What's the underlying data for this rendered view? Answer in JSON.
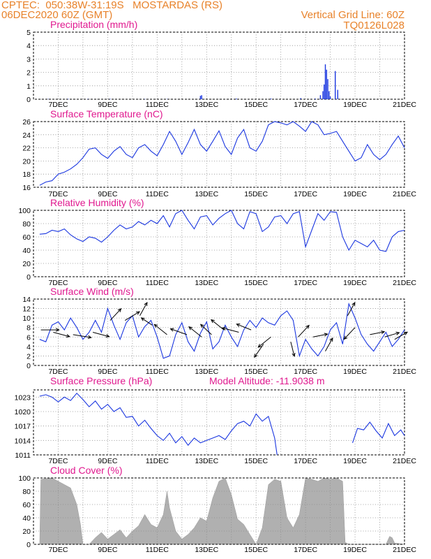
{
  "header": {
    "left_line1": "CPTEC:  050:38W-31:19S   MOSTARDAS (RS)",
    "left_line2": "06DEC2020 60Z (GMT)",
    "right_line1": "Vertical Grid Line: 60Z",
    "right_line2": "TQ0126L028"
  },
  "colors": {
    "title": "#e0198f",
    "header": "#e8822a",
    "series": "#1a36e0",
    "cloud": "#b0b0b0"
  },
  "chart_data": [
    {
      "id": "precip",
      "type": "bar",
      "title": "Precipitation (mm/h)",
      "ylim": [
        0,
        5
      ],
      "yticks": [
        0,
        1,
        2,
        3,
        4,
        5
      ],
      "xticks": [
        "7DEC",
        "9DEC",
        "11DEC",
        "13DEC",
        "15DEC",
        "17DEC",
        "19DEC",
        "21DEC"
      ],
      "x": [
        6.6,
        7.4,
        8.2,
        9.1,
        10.5,
        11.4,
        12.75,
        12.8,
        14.2,
        15.6,
        16.8,
        17.4,
        17.6,
        17.7,
        17.75,
        17.8,
        17.85,
        17.9,
        17.95,
        18.0,
        18.2,
        18.3
      ],
      "values": [
        0.02,
        0.03,
        0.02,
        0.03,
        0.02,
        0.02,
        0.25,
        0.3,
        0.05,
        0.05,
        0.08,
        0.05,
        0.3,
        0.6,
        1.1,
        2.6,
        2.2,
        1.5,
        0.6,
        0.2,
        2.1,
        0.7
      ]
    },
    {
      "id": "temp",
      "type": "line",
      "title": "Surface Temperature (nC)",
      "ylim": [
        16,
        26
      ],
      "yticks": [
        16,
        18,
        20,
        22,
        24,
        26
      ],
      "xticks": [
        "7DEC",
        "9DEC",
        "11DEC",
        "13DEC",
        "15DEC",
        "17DEC",
        "19DEC",
        "21DEC"
      ],
      "x": [
        6.25,
        6.5,
        6.75,
        7.0,
        7.25,
        7.5,
        7.75,
        8.0,
        8.25,
        8.5,
        8.75,
        9.0,
        9.25,
        9.5,
        9.75,
        10.0,
        10.25,
        10.5,
        10.75,
        11.0,
        11.25,
        11.5,
        11.75,
        12.0,
        12.25,
        12.5,
        12.75,
        13.0,
        13.25,
        13.5,
        13.75,
        14.0,
        14.25,
        14.5,
        14.75,
        15.0,
        15.25,
        15.5,
        15.75,
        16.0,
        16.25,
        16.5,
        16.75,
        17.0,
        17.25,
        17.5,
        17.75,
        18.0,
        18.25,
        18.5,
        18.75,
        19.0,
        19.25,
        19.5,
        19.75,
        20.0,
        20.25,
        20.5,
        20.75,
        21.0
      ],
      "values": [
        16.3,
        16.8,
        17.0,
        18.0,
        18.3,
        18.8,
        19.5,
        20.5,
        21.8,
        22.0,
        21.0,
        20.4,
        21.5,
        22.2,
        21.0,
        20.5,
        22.0,
        22.5,
        21.5,
        20.8,
        22.5,
        24.5,
        23.0,
        21.0,
        22.8,
        24.8,
        22.5,
        21.5,
        23.0,
        24.6,
        22.2,
        21.0,
        23.5,
        24.8,
        22.0,
        21.5,
        23.0,
        25.5,
        26.0,
        25.8,
        25.5,
        26.0,
        25.3,
        24.5,
        26.0,
        25.5,
        24.0,
        24.2,
        24.5,
        23.0,
        21.5,
        20.0,
        20.5,
        22.5,
        21.0,
        20.2,
        21.0,
        22.5,
        23.8,
        22.0
      ]
    },
    {
      "id": "rh",
      "type": "line",
      "title": "Relative Humidity (%)",
      "ylim": [
        0,
        100
      ],
      "yticks": [
        0,
        20,
        40,
        60,
        80,
        100
      ],
      "xticks": [
        "7DEC",
        "9DEC",
        "11DEC",
        "13DEC",
        "15DEC",
        "17DEC",
        "19DEC",
        "21DEC"
      ],
      "x": [
        6.25,
        6.5,
        6.75,
        7.0,
        7.25,
        7.5,
        7.75,
        8.0,
        8.25,
        8.5,
        8.75,
        9.0,
        9.25,
        9.5,
        9.75,
        10.0,
        10.25,
        10.5,
        10.75,
        11.0,
        11.25,
        11.5,
        11.75,
        12.0,
        12.25,
        12.5,
        12.75,
        13.0,
        13.25,
        13.5,
        13.75,
        14.0,
        14.25,
        14.5,
        14.75,
        15.0,
        15.25,
        15.5,
        15.75,
        16.0,
        16.25,
        16.5,
        16.75,
        17.0,
        17.25,
        17.5,
        17.75,
        18.0,
        18.25,
        18.5,
        18.75,
        19.0,
        19.25,
        19.5,
        19.75,
        20.0,
        20.25,
        20.5,
        20.75,
        21.0
      ],
      "values": [
        64,
        65,
        70,
        68,
        72,
        63,
        57,
        53,
        60,
        58,
        52,
        60,
        70,
        78,
        72,
        75,
        83,
        78,
        85,
        80,
        92,
        75,
        95,
        100,
        85,
        72,
        90,
        92,
        78,
        88,
        95,
        100,
        80,
        72,
        98,
        95,
        68,
        75,
        90,
        92,
        80,
        95,
        98,
        45,
        70,
        95,
        85,
        98,
        97,
        60,
        40,
        55,
        50,
        45,
        55,
        40,
        38,
        60,
        68,
        70
      ]
    },
    {
      "id": "wind",
      "type": "line",
      "title": "Surface Wind (m/s)",
      "ylim": [
        0,
        14
      ],
      "yticks": [
        0,
        2,
        4,
        6,
        8,
        10,
        12,
        14
      ],
      "xticks": [
        "7DEC",
        "9DEC",
        "11DEC",
        "13DEC",
        "15DEC",
        "17DEC",
        "19DEC",
        "21DEC"
      ],
      "x": [
        6.25,
        6.5,
        6.75,
        7.0,
        7.25,
        7.5,
        7.75,
        8.0,
        8.25,
        8.5,
        8.75,
        9.0,
        9.25,
        9.5,
        9.75,
        10.0,
        10.25,
        10.5,
        10.75,
        11.0,
        11.25,
        11.5,
        11.75,
        12.0,
        12.25,
        12.5,
        12.75,
        13.0,
        13.25,
        13.5,
        13.75,
        14.0,
        14.25,
        14.5,
        14.75,
        15.0,
        15.25,
        15.5,
        15.75,
        16.0,
        16.25,
        16.5,
        16.75,
        17.0,
        17.25,
        17.5,
        17.75,
        18.0,
        18.25,
        18.5,
        18.75,
        19.0,
        19.25,
        19.5,
        19.75,
        20.0,
        20.25,
        20.5,
        20.75,
        21.0
      ],
      "values": [
        5.5,
        5.0,
        8.5,
        9.2,
        7.5,
        10.0,
        8.0,
        5.5,
        7.0,
        9.5,
        7.0,
        12.0,
        8.5,
        5.5,
        9.0,
        10.5,
        6.0,
        8.2,
        9.5,
        6.0,
        1.5,
        2.0,
        6.5,
        9.0,
        5.0,
        3.0,
        6.8,
        9.2,
        3.5,
        5.0,
        8.5,
        6.0,
        4.0,
        7.5,
        9.5,
        8.0,
        10.0,
        9.0,
        8.5,
        10.5,
        11.5,
        9.5,
        2.0,
        5.5,
        3.5,
        2.0,
        4.0,
        7.5,
        9.0,
        4.5,
        13.0,
        10.0,
        6.5,
        4.5,
        3.0,
        5.0,
        7.0,
        4.0,
        5.5,
        7.5
      ],
      "arrows": [
        {
          "x": 6.3,
          "y": 7.5,
          "u": 1.0,
          "v": 0.0
        },
        {
          "x": 6.8,
          "y": 7.0,
          "u": 0.9,
          "v": -0.3
        },
        {
          "x": 7.6,
          "y": 6.5,
          "u": 1.0,
          "v": -0.2
        },
        {
          "x": 8.4,
          "y": 7.0,
          "u": 0.9,
          "v": -0.3
        },
        {
          "x": 9.1,
          "y": 9.5,
          "u": 0.6,
          "v": 0.8
        },
        {
          "x": 9.7,
          "y": 9.5,
          "u": 0.8,
          "v": 0.6
        },
        {
          "x": 10.3,
          "y": 10.5,
          "u": 0.4,
          "v": 0.9
        },
        {
          "x": 10.8,
          "y": 8.5,
          "u": -0.6,
          "v": 0.5
        },
        {
          "x": 11.4,
          "y": 6.5,
          "u": -0.7,
          "v": 0.7
        },
        {
          "x": 12.2,
          "y": 6.5,
          "u": -0.9,
          "v": 0.4
        },
        {
          "x": 12.8,
          "y": 6.0,
          "u": -0.7,
          "v": 0.7
        },
        {
          "x": 13.2,
          "y": 6.5,
          "u": -0.6,
          "v": 0.7
        },
        {
          "x": 13.7,
          "y": 7.5,
          "u": -0.7,
          "v": 0.7
        },
        {
          "x": 14.3,
          "y": 7.0,
          "u": -0.9,
          "v": 0.3
        },
        {
          "x": 14.8,
          "y": 7.5,
          "u": -0.8,
          "v": 0.4
        },
        {
          "x": 15.3,
          "y": 4.5,
          "u": -0.5,
          "v": -0.9
        },
        {
          "x": 15.6,
          "y": 6.0,
          "u": -0.7,
          "v": -0.7
        },
        {
          "x": 16.4,
          "y": 5.0,
          "u": 0.2,
          "v": -1.0
        },
        {
          "x": 16.7,
          "y": 6.0,
          "u": 0.6,
          "v": 0.8
        },
        {
          "x": 17.3,
          "y": 6.0,
          "u": 0.8,
          "v": 0.2
        },
        {
          "x": 17.8,
          "y": 3.0,
          "u": 0.4,
          "v": 0.9
        },
        {
          "x": 18.7,
          "y": 10.5,
          "u": 0.4,
          "v": 0.9
        },
        {
          "x": 19.0,
          "y": 8.0,
          "u": -0.6,
          "v": -0.8
        },
        {
          "x": 19.6,
          "y": 6.5,
          "u": 0.8,
          "v": 0.2
        },
        {
          "x": 20.2,
          "y": 6.0,
          "u": 0.8,
          "v": 0.3
        },
        {
          "x": 20.6,
          "y": 5.5,
          "u": 0.7,
          "v": 0.5
        }
      ]
    },
    {
      "id": "pressure",
      "type": "line",
      "title": "Surface Pressure (hPa)",
      "annotation": "Model Altitude: -11.9038 m",
      "ylim": [
        1011,
        1024.5
      ],
      "yticks": [
        1011,
        1014,
        1017,
        1020,
        1023
      ],
      "xticks": [
        "7DEC",
        "9DEC",
        "11DEC",
        "13DEC",
        "15DEC",
        "17DEC",
        "19DEC",
        "21DEC"
      ],
      "x": [
        6.25,
        6.5,
        6.75,
        7.0,
        7.25,
        7.5,
        7.75,
        8.0,
        8.25,
        8.5,
        8.75,
        9.0,
        9.25,
        9.5,
        9.75,
        10.0,
        10.25,
        10.5,
        10.75,
        11.0,
        11.25,
        11.5,
        11.75,
        12.0,
        12.25,
        12.5,
        12.75,
        13.0,
        13.25,
        13.5,
        13.75,
        14.0,
        14.25,
        14.5,
        14.75,
        15.0,
        15.25,
        15.5,
        15.75,
        15.85
      ],
      "values": [
        1023.2,
        1023.5,
        1023.0,
        1022.0,
        1023.0,
        1022.3,
        1023.8,
        1022.5,
        1021.0,
        1022.2,
        1020.5,
        1021.5,
        1020.0,
        1020.8,
        1018.8,
        1019.0,
        1017.0,
        1018.2,
        1016.5,
        1015.0,
        1014.0,
        1015.5,
        1013.5,
        1014.8,
        1013.0,
        1014.5,
        1013.5,
        1014.0,
        1014.5,
        1015.0,
        1014.2,
        1016.0,
        1017.5,
        1018.0,
        1017.0,
        1019.5,
        1018.0,
        1019.0,
        1014.5,
        1011.0
      ],
      "x2": [
        18.9,
        19.1,
        19.35,
        19.6,
        19.85,
        20.1,
        20.35,
        20.6,
        20.85,
        21.0
      ],
      "values2": [
        1013.5,
        1016.5,
        1016.2,
        1017.8,
        1016.0,
        1014.5,
        1017.5,
        1015.0,
        1016.2,
        1015.0
      ]
    },
    {
      "id": "cloud",
      "type": "area",
      "title": "Cloud Cover (%)",
      "ylim": [
        0,
        100
      ],
      "yticks": [
        0,
        20,
        40,
        60,
        80,
        100
      ],
      "xticks": [
        "7DEC",
        "9DEC",
        "11DEC",
        "13DEC",
        "15DEC",
        "17DEC",
        "19DEC",
        "21DEC"
      ],
      "x": [
        6.25,
        6.3,
        6.5,
        6.75,
        7.0,
        7.25,
        7.5,
        7.75,
        7.9,
        8.0,
        8.25,
        8.5,
        8.75,
        9.0,
        9.25,
        9.5,
        9.75,
        10.0,
        10.25,
        10.5,
        10.75,
        11.0,
        11.25,
        11.4,
        11.5,
        11.75,
        12.0,
        12.25,
        12.5,
        12.75,
        13.0,
        13.25,
        13.5,
        13.75,
        14.0,
        14.25,
        14.5,
        14.75,
        15.0,
        15.25,
        15.5,
        15.75,
        16.0,
        16.25,
        16.5,
        16.75,
        17.0,
        17.25,
        17.5,
        17.75,
        18.0,
        18.25,
        18.5,
        18.6,
        18.75,
        19.0,
        19.25,
        19.5,
        19.75,
        20.0,
        20.25,
        20.4,
        20.5,
        20.6,
        21.0
      ],
      "values": [
        0,
        98,
        99,
        100,
        95,
        90,
        85,
        60,
        30,
        0,
        0,
        10,
        18,
        8,
        15,
        22,
        10,
        20,
        28,
        45,
        30,
        25,
        45,
        80,
        55,
        20,
        8,
        15,
        25,
        40,
        35,
        70,
        95,
        100,
        75,
        38,
        30,
        15,
        0,
        25,
        90,
        98,
        95,
        40,
        25,
        45,
        100,
        98,
        95,
        100,
        98,
        100,
        95,
        3,
        0,
        0,
        0,
        0,
        0,
        0,
        0,
        12,
        10,
        2,
        0
      ]
    }
  ]
}
